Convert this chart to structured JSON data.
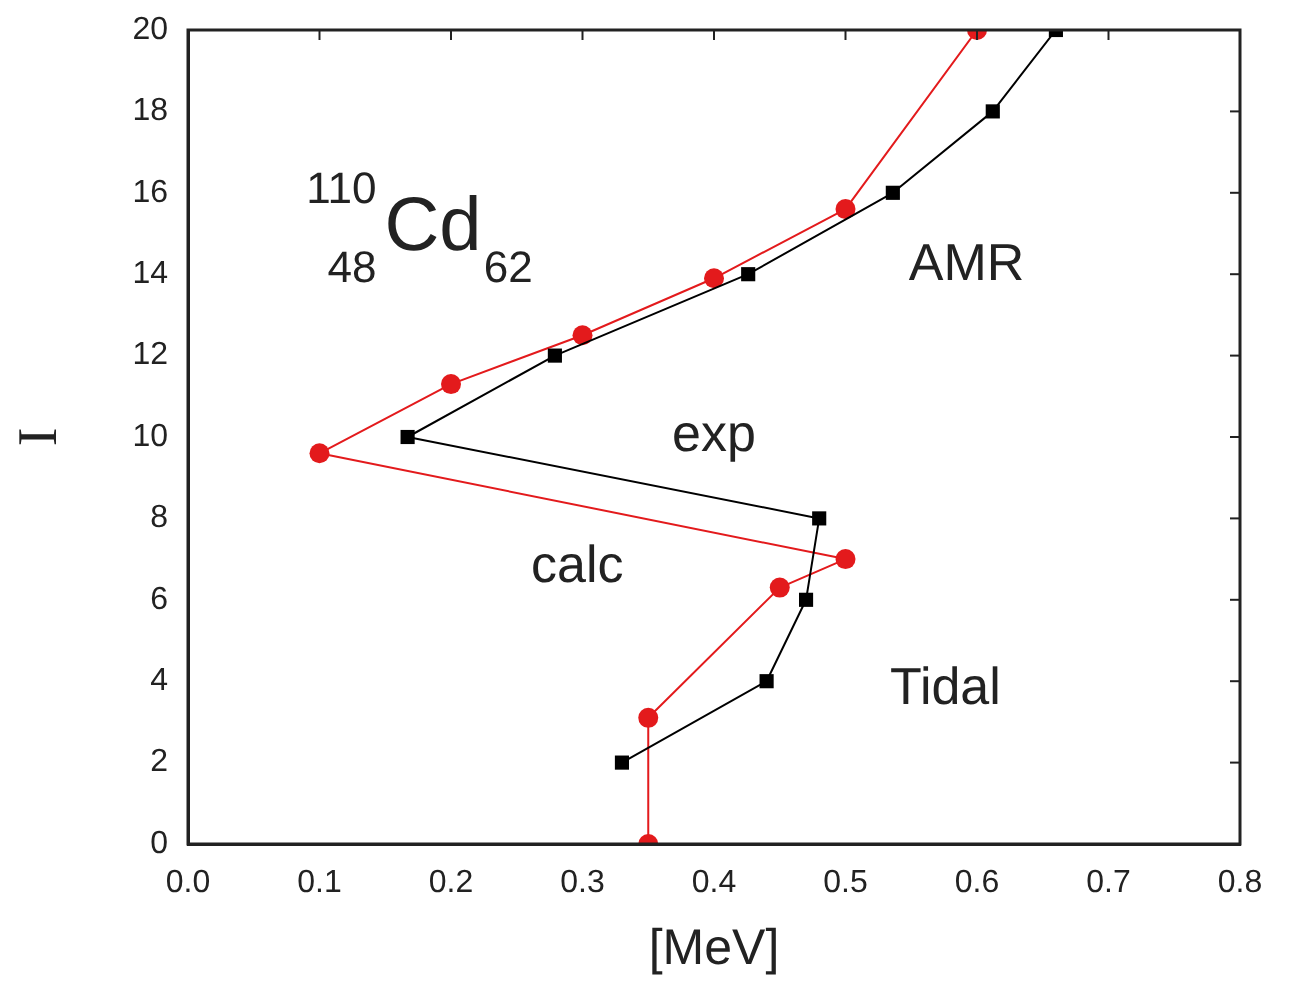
{
  "chart_data": {
    "type": "line",
    "xlabel": "[MeV]",
    "ylabel": "I",
    "series": [
      {
        "color": "#000000",
        "marker": "square",
        "x": [
          0.33,
          0.44,
          0.47,
          0.48,
          0.167,
          0.279,
          0.426,
          0.536,
          0.612,
          0.66
        ],
        "values": [
          2,
          4,
          6,
          8,
          10,
          12,
          14,
          16,
          18,
          20
        ]
      },
      {
        "color": "#e31a1c",
        "marker": "circle",
        "x": [
          0.35,
          0.35,
          0.45,
          0.5,
          0.1,
          0.2,
          0.3,
          0.4,
          0.5,
          0.6
        ],
        "values": [
          0,
          3.1,
          6.3,
          7,
          9.6,
          11.3,
          12.5,
          13.9,
          15.6,
          20
        ]
      }
    ],
    "xlim": [
      0,
      0.8
    ],
    "xticks": [
      {
        "value": 0,
        "label": "0.0"
      },
      {
        "value": 0.1,
        "label": "0.1"
      },
      {
        "value": 0.2,
        "label": "0.2"
      },
      {
        "value": 0.3,
        "label": "0.3"
      },
      {
        "value": 0.4,
        "label": "0.4"
      },
      {
        "value": 0.5,
        "label": "0.5"
      },
      {
        "value": 0.6,
        "label": "0.6"
      },
      {
        "value": 0.7,
        "label": "0.7"
      },
      {
        "value": 0.8,
        "label": "0.8"
      }
    ],
    "ylim": [
      0,
      20
    ],
    "yticks": [
      0,
      2,
      4,
      6,
      8,
      10,
      12,
      14,
      16,
      18,
      20
    ],
    "annotations": [
      "$^{110}$$_{48}$Cd$_{62}$",
      "AMR",
      "exp",
      "calc",
      "Tidal"
    ],
    "grid": false,
    "legend": false,
    "line_style": "solid"
  }
}
